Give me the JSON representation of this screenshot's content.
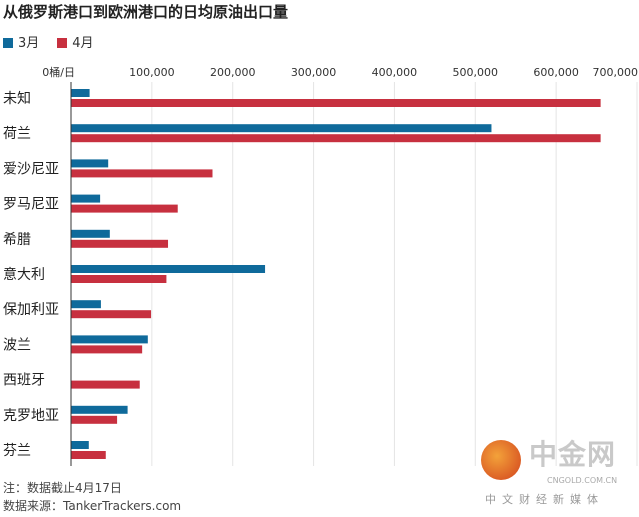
{
  "chart_data": {
    "type": "bar",
    "orientation": "horizontal",
    "title": "从俄罗斯港口到欧洲港口的日均原油出口量",
    "categories": [
      "未知",
      "荷兰",
      "爱沙尼亚",
      "罗马尼亚",
      "希腊",
      "意大利",
      "保加利亚",
      "波兰",
      "西班牙",
      "克罗地亚",
      "芬兰"
    ],
    "series": [
      {
        "name": "3月",
        "color": "#0f6a9b",
        "values": [
          23000,
          520000,
          46000,
          36000,
          48000,
          240000,
          37000,
          95000,
          0,
          70000,
          22000
        ]
      },
      {
        "name": "4月",
        "color": "#c7303f",
        "values": [
          655000,
          655000,
          175000,
          132000,
          120000,
          118000,
          99000,
          88000,
          85000,
          57000,
          43000
        ]
      }
    ],
    "xlim": [
      0,
      700000
    ],
    "xticks": [
      "0桶/日",
      "100,000",
      "200,000",
      "300,000",
      "400,000",
      "500,000",
      "600,000",
      "700,000"
    ],
    "grid": true,
    "legend": "top-left"
  },
  "notes": {
    "note": "注：数据截止4月17日",
    "source": "数据来源：TankerTrackers.com"
  },
  "watermark": {
    "name": "中金网",
    "url": "CNGOLD.COM.CN",
    "slogan": "中文财经新媒体"
  }
}
